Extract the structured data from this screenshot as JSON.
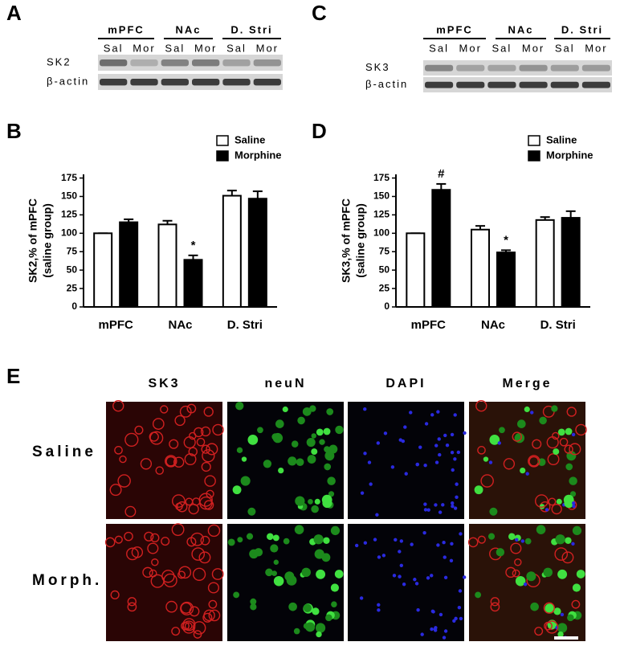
{
  "panels": [
    "A",
    "B",
    "C",
    "D",
    "E"
  ],
  "blots": [
    {
      "groups": [
        "mPFC",
        "NAc",
        "D. Stri"
      ],
      "lanes": [
        "Sal",
        "Mor",
        "Sal",
        "Mor",
        "Sal",
        "Mor"
      ],
      "rows": [
        "SK2",
        "β-actin"
      ]
    },
    {
      "groups": [
        "mPFC",
        "NAc",
        "D. Stri"
      ],
      "lanes": [
        "Sal",
        "Mor",
        "Sal",
        "Mor",
        "Sal",
        "Mor"
      ],
      "rows": [
        "SK3",
        "β-actin"
      ]
    }
  ],
  "chart_data": [
    {
      "type": "bar",
      "ylabel": [
        "SK2,% of mPFC",
        "(saline group)"
      ],
      "categories": [
        "mPFC",
        "NAc",
        "D. Stri"
      ],
      "series": [
        {
          "name": "Saline",
          "color": "#ffffff",
          "values": [
            100,
            112,
            151
          ],
          "errors": [
            0,
            5,
            7
          ],
          "marks": [
            null,
            null,
            null
          ]
        },
        {
          "name": "Morphine",
          "color": "#000000",
          "values": [
            115,
            64,
            147
          ],
          "errors": [
            4,
            6,
            10
          ],
          "marks": [
            null,
            "*",
            null
          ]
        }
      ],
      "ylim": [
        0,
        180
      ],
      "yticks": [
        0,
        25,
        50,
        75,
        100,
        125,
        150,
        175
      ],
      "legend": "upper right"
    },
    {
      "type": "bar",
      "ylabel": [
        "SK3,% of mPFC",
        "(saline group)"
      ],
      "categories": [
        "mPFC",
        "NAc",
        "D. Stri"
      ],
      "series": [
        {
          "name": "Saline",
          "color": "#ffffff",
          "values": [
            100,
            105,
            118
          ],
          "errors": [
            0,
            5,
            4
          ],
          "marks": [
            null,
            null,
            null
          ]
        },
        {
          "name": "Morphine",
          "color": "#000000",
          "values": [
            159,
            74,
            121
          ],
          "errors": [
            8,
            3,
            9
          ],
          "marks": [
            "#",
            "*",
            null
          ]
        }
      ],
      "ylim": [
        0,
        180
      ],
      "yticks": [
        0,
        25,
        50,
        75,
        100,
        125,
        150,
        175
      ],
      "legend": "upper right"
    }
  ],
  "images": {
    "columns": [
      {
        "label": "SK3",
        "color": "#e8262a"
      },
      {
        "label": "neuN",
        "color": "#22dd22"
      },
      {
        "label": "DAPI",
        "color": "#2222dd"
      },
      {
        "label": "Merge",
        "color": "#000000"
      }
    ],
    "rows": [
      "Saline",
      "Morph."
    ]
  }
}
